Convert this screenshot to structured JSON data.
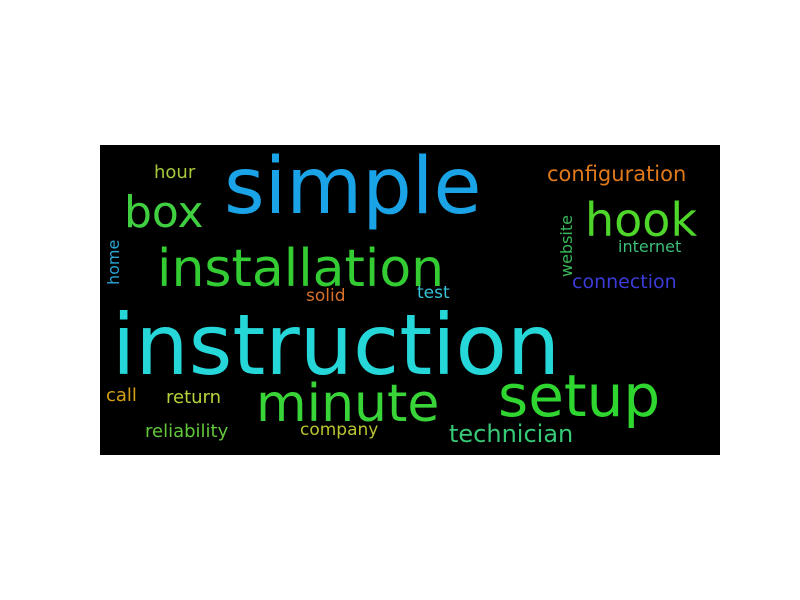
{
  "colors": {
    "background": "#000000",
    "page": "#ffffff"
  },
  "words": [
    {
      "key": "instruction",
      "text": "instruction",
      "color": "#26d7d9",
      "orientation": "horizontal"
    },
    {
      "key": "simple",
      "text": "simple",
      "color": "#1aa3e6",
      "orientation": "horizontal"
    },
    {
      "key": "installation",
      "text": "installation",
      "color": "#33cc33",
      "orientation": "horizontal"
    },
    {
      "key": "setup",
      "text": "setup",
      "color": "#2fd62f",
      "orientation": "horizontal"
    },
    {
      "key": "minute",
      "text": "minute",
      "color": "#38d438",
      "orientation": "horizontal"
    },
    {
      "key": "hook",
      "text": "hook",
      "color": "#4fd62a",
      "orientation": "horizontal"
    },
    {
      "key": "box",
      "text": "box",
      "color": "#40cf40",
      "orientation": "horizontal"
    },
    {
      "key": "technician",
      "text": "technician",
      "color": "#36c976",
      "orientation": "horizontal"
    },
    {
      "key": "configuration",
      "text": "configuration",
      "color": "#e0791a",
      "orientation": "horizontal"
    },
    {
      "key": "connection",
      "text": "connection",
      "color": "#3b3bd9",
      "orientation": "horizontal"
    },
    {
      "key": "hour",
      "text": "hour",
      "color": "#a6c83a",
      "orientation": "horizontal"
    },
    {
      "key": "internet",
      "text": "internet",
      "color": "#3cbf7a",
      "orientation": "horizontal"
    },
    {
      "key": "website",
      "text": "website",
      "color": "#3aba5a",
      "orientation": "vertical"
    },
    {
      "key": "home",
      "text": "home",
      "color": "#2aa6d6",
      "orientation": "vertical"
    },
    {
      "key": "solid",
      "text": "solid",
      "color": "#d9712a",
      "orientation": "horizontal"
    },
    {
      "key": "test",
      "text": "test",
      "color": "#36c4d9",
      "orientation": "horizontal"
    },
    {
      "key": "call",
      "text": "call",
      "color": "#d4a018",
      "orientation": "horizontal"
    },
    {
      "key": "return",
      "text": "return",
      "color": "#b6d43a",
      "orientation": "horizontal"
    },
    {
      "key": "reliability",
      "text": "reliability",
      "color": "#62c73a",
      "orientation": "horizontal"
    },
    {
      "key": "company",
      "text": "company",
      "color": "#b9c42e",
      "orientation": "horizontal"
    }
  ]
}
